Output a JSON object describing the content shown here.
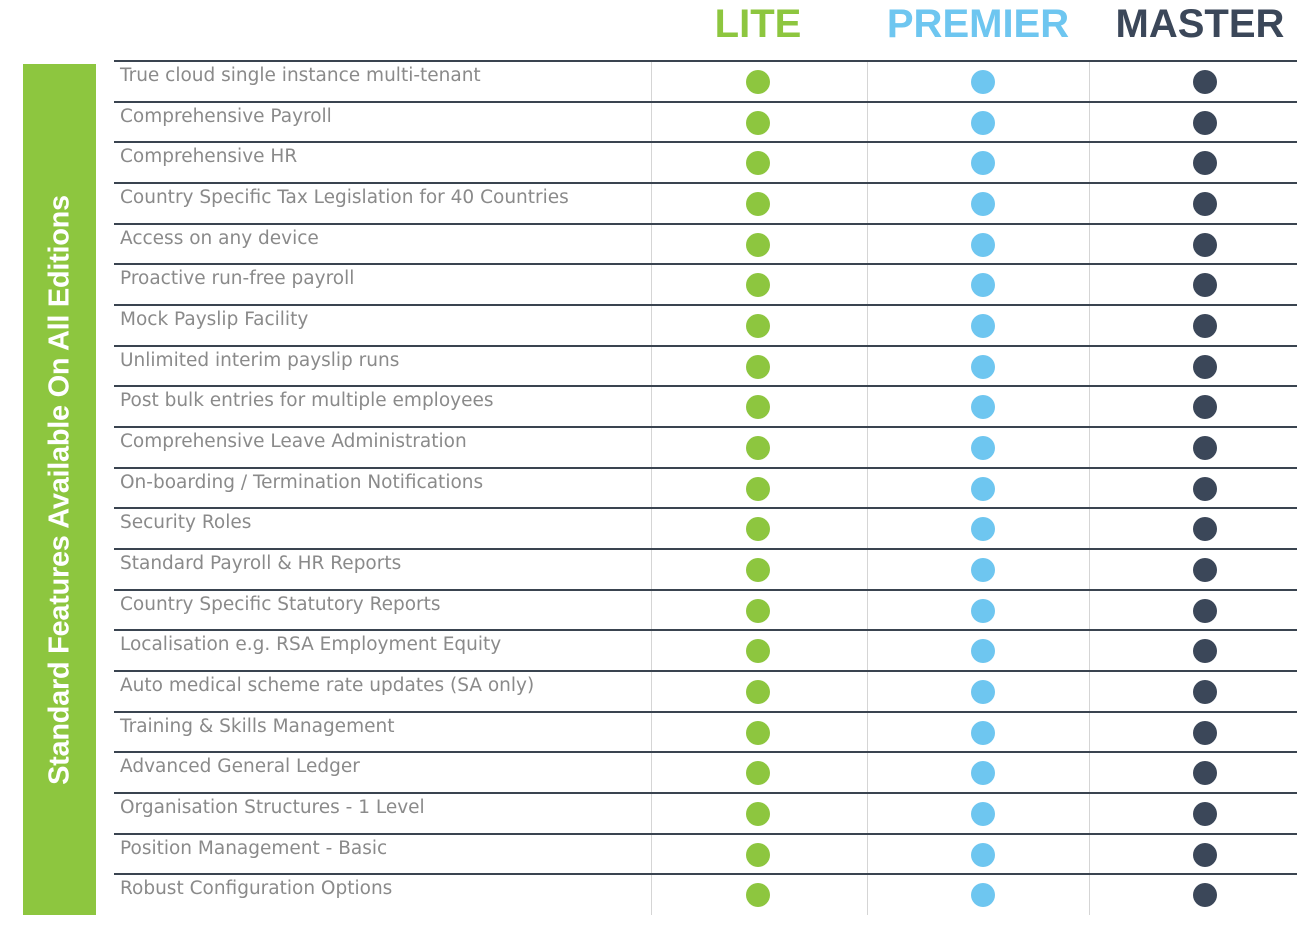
{
  "header": {
    "editions": [
      "LITE",
      "PREMIER",
      "MASTER"
    ]
  },
  "side_label": "Standard Features Available On All Editions",
  "table": {
    "rows": [
      "True cloud single instance multi-tenant",
      "Comprehensive Payroll",
      "Comprehensive HR",
      "Country Specific Tax Legislation for 40 Countries",
      "Access on any device",
      "Proactive run-free payroll",
      "Mock Payslip Facility",
      "Unlimited interim payslip runs",
      "Post bulk entries for multiple employees",
      "Comprehensive Leave Administration",
      "On-boarding / Termination Notifications",
      "Security Roles",
      "Standard Payroll & HR Reports",
      "Country Specific Statutory Reports",
      "Localisation e.g. RSA Employment Equity",
      "Auto medical scheme rate updates (SA only)",
      "Training & Skills Management",
      "Advanced General Ledger",
      "Organisation Structures - 1 Level",
      "Position Management - Basic",
      "Robust Configuration Options"
    ]
  }
}
